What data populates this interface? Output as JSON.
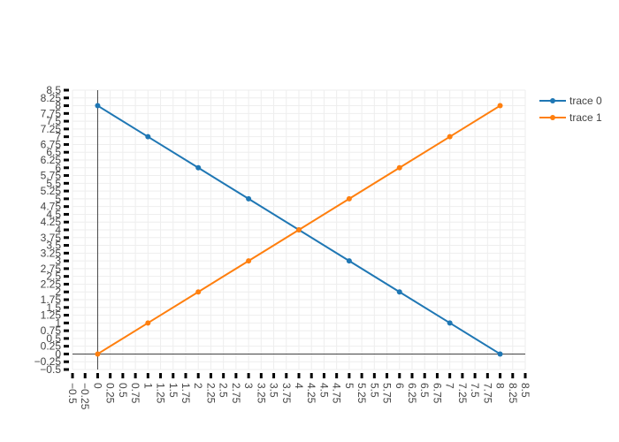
{
  "chart_data": {
    "type": "line",
    "title": "",
    "xlabel": "",
    "ylabel": "",
    "xlim": [
      -0.5,
      8.5
    ],
    "ylim": [
      -0.5,
      8.5
    ],
    "tick_step": 0.25,
    "grid": true,
    "legend_position": "top-right",
    "series": [
      {
        "name": "trace 0",
        "color": "#1f77b4",
        "x": [
          0,
          1,
          2,
          3,
          4,
          5,
          6,
          7,
          8
        ],
        "y": [
          8,
          7,
          6,
          5,
          4,
          3,
          2,
          1,
          0
        ]
      },
      {
        "name": "trace 1",
        "color": "#ff7f0e",
        "x": [
          0,
          1,
          2,
          3,
          4,
          5,
          6,
          7,
          8
        ],
        "y": [
          0,
          1,
          2,
          3,
          4,
          5,
          6,
          7,
          8
        ]
      }
    ],
    "x_tick_labels": [
      "−0.5",
      "−0.25",
      "0",
      "0.25",
      "0.5",
      "0.75",
      "1",
      "1.25",
      "1.5",
      "1.75",
      "2",
      "2.25",
      "2.5",
      "2.75",
      "3",
      "3.25",
      "3.5",
      "3.75",
      "4",
      "4.25",
      "4.5",
      "4.75",
      "5",
      "5.25",
      "5.5",
      "5.75",
      "6",
      "6.25",
      "6.5",
      "6.75",
      "7",
      "7.25",
      "7.5",
      "7.75",
      "8",
      "8.25",
      "8.5"
    ],
    "y_tick_labels": [
      "−0.5",
      "−0.25",
      "0",
      "0.25",
      "0.5",
      "0.75",
      "1",
      "1.25",
      "1.5",
      "1.75",
      "2",
      "2.25",
      "2.5",
      "2.75",
      "3",
      "3.25",
      "3.5",
      "3.75",
      "4",
      "4.25",
      "4.5",
      "4.75",
      "5",
      "5.25",
      "5.5",
      "5.75",
      "6",
      "6.25",
      "6.5",
      "6.75",
      "7",
      "7.25",
      "7.5",
      "7.75",
      "8",
      "8.25",
      "8.5"
    ]
  }
}
